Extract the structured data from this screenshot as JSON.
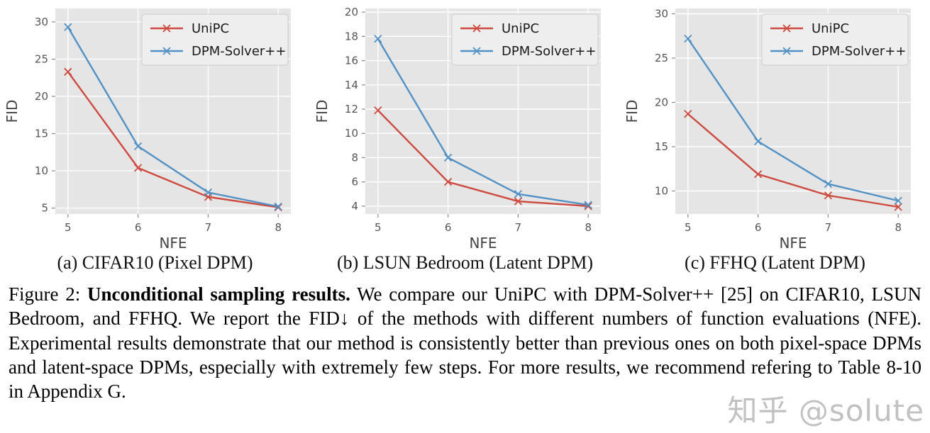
{
  "colors": {
    "unipc": "#cd4a3e",
    "dpm": "#5291c4",
    "plot_bg": "#e5e5e5",
    "grid": "#ffffff",
    "tick_mark": "#8a8a8a",
    "tick_label": "#555555",
    "axis_label": "#444444",
    "legend_bg": "#eeeeee",
    "legend_border": "#cccccc",
    "legend_text": "#1a1a1a"
  },
  "chart_data": [
    {
      "type": "line",
      "title": "(a) CIFAR10 (Pixel DPM)",
      "xlabel": "NFE",
      "ylabel": "FID",
      "x": [
        5,
        6,
        7,
        8
      ],
      "xticks": [
        5,
        6,
        7,
        8
      ],
      "yticks": [
        5,
        10,
        15,
        20,
        25,
        30
      ],
      "xlim": [
        4.82,
        8.18
      ],
      "ylim": [
        4.2,
        31.8
      ],
      "grid": true,
      "legend_position": "top-right",
      "series": [
        {
          "name": "UniPC",
          "color_key": "unipc",
          "values": [
            23.3,
            10.4,
            6.5,
            5.1
          ]
        },
        {
          "name": "DPM-Solver++",
          "color_key": "dpm",
          "values": [
            29.3,
            13.3,
            7.1,
            5.2
          ]
        }
      ]
    },
    {
      "type": "line",
      "title": "(b) LSUN Bedroom (Latent DPM)",
      "xlabel": "NFE",
      "ylabel": "FID",
      "x": [
        5,
        6,
        7,
        8
      ],
      "xticks": [
        5,
        6,
        7,
        8
      ],
      "yticks": [
        4,
        6,
        8,
        10,
        12,
        14,
        16,
        18,
        20
      ],
      "xlim": [
        4.82,
        8.18
      ],
      "ylim": [
        3.35,
        20.3
      ],
      "grid": true,
      "legend_position": "top-right",
      "series": [
        {
          "name": "UniPC",
          "color_key": "unipc",
          "values": [
            11.9,
            6.0,
            4.4,
            4.0
          ]
        },
        {
          "name": "DPM-Solver++",
          "color_key": "dpm",
          "values": [
            17.8,
            8.0,
            5.0,
            4.1
          ]
        }
      ]
    },
    {
      "type": "line",
      "title": "(c) FFHQ (Latent DPM)",
      "xlabel": "NFE",
      "ylabel": "FID",
      "x": [
        5,
        6,
        7,
        8
      ],
      "xticks": [
        5,
        6,
        7,
        8
      ],
      "yticks": [
        10,
        15,
        20,
        25,
        30
      ],
      "xlim": [
        4.82,
        8.18
      ],
      "ylim": [
        7.4,
        30.6
      ],
      "grid": true,
      "legend_position": "top-right",
      "series": [
        {
          "name": "UniPC",
          "color_key": "unipc",
          "values": [
            18.7,
            11.9,
            9.5,
            8.2
          ]
        },
        {
          "name": "DPM-Solver++",
          "color_key": "dpm",
          "values": [
            27.2,
            15.6,
            10.8,
            8.9
          ]
        }
      ]
    }
  ],
  "legend": {
    "items": [
      {
        "label": "UniPC",
        "color_key": "unipc"
      },
      {
        "label": "DPM-Solver++",
        "color_key": "dpm"
      }
    ]
  },
  "caption": {
    "prefix": "Figure 2: ",
    "bold": "Unconditional sampling results.",
    "body": " We compare our UniPC with DPM-Solver++ [25] on CIFAR10, LSUN Bedroom, and FFHQ. We report the FID↓ of the methods with different numbers of function evaluations (NFE). Experimental results demonstrate that our method is consistently better than previous ones on both pixel-space DPMs and latent-space DPMs, especially with extremely few steps. For more results, we recommend refering to Table 8-10 in Appendix G."
  },
  "watermark": {
    "text": "知乎 @solute",
    "color": "#b2b2b2"
  }
}
